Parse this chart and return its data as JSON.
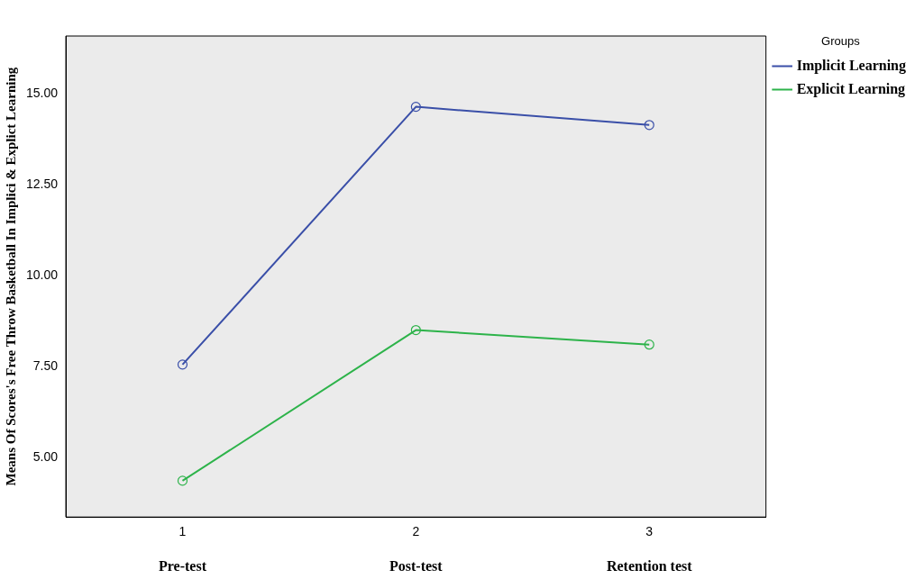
{
  "chart_data": {
    "type": "line",
    "ylabel": "Means Of Scores's Free Throw Basketball In Implici & Explict Learning",
    "legend_title": "Groups",
    "categories": [
      "1",
      "2",
      "3"
    ],
    "series": [
      {
        "name": "Implicit Learning",
        "color": "#3a4fa8",
        "values": [
          7.55,
          14.65,
          14.15
        ]
      },
      {
        "name": "Explicit Learning",
        "color": "#2db34a",
        "values": [
          4.35,
          8.5,
          8.1
        ]
      }
    ],
    "ylim": [
      3.35,
      16.6
    ],
    "yticks": [
      {
        "value": 5,
        "label": "5.00"
      },
      {
        "value": 7.5,
        "label": "7.50"
      },
      {
        "value": 10,
        "label": "10.00"
      },
      {
        "value": 12.5,
        "label": "12.50"
      },
      {
        "value": 15,
        "label": "15.00"
      }
    ],
    "annotations": [
      "Pre-test",
      "Post-test",
      "Retention test"
    ],
    "grid": false,
    "legend": "top right",
    "marker": "circle",
    "line_style": "solid"
  }
}
